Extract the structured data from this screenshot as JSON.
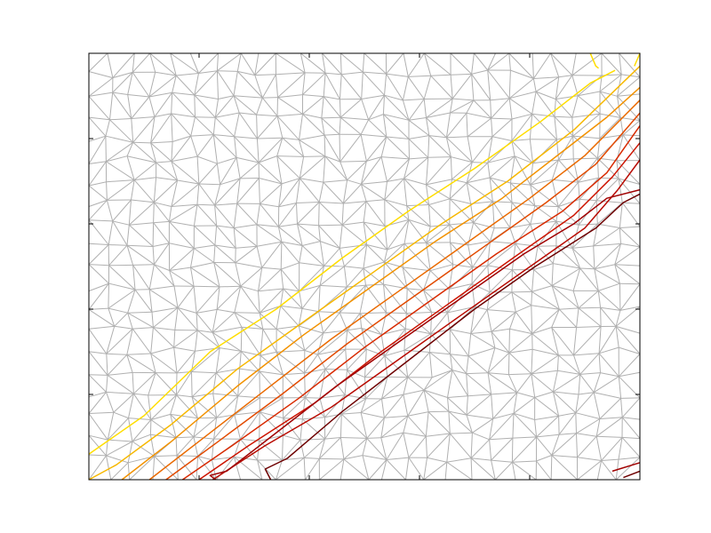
{
  "chart_data": {
    "type": "line",
    "title": "",
    "xlabel": "",
    "ylabel": "",
    "xlim": [
      0,
      1
    ],
    "ylim": [
      0,
      1
    ],
    "grid": false,
    "legend": "none",
    "mesh": {
      "color": "#b0b0b0",
      "node_grid": [
        26,
        20
      ],
      "jitter": 0.42,
      "seed": 7
    },
    "series": [
      {
        "color": "#ffdd00",
        "x": [
          0.0,
          0.1,
          0.22,
          0.34,
          0.46,
          0.58,
          0.7,
          0.82,
          0.91,
          0.955
        ],
        "y": [
          0.06,
          0.15,
          0.3,
          0.4,
          0.52,
          0.63,
          0.73,
          0.84,
          0.93,
          0.96
        ]
      },
      {
        "color": "#ffdd00",
        "x": [
          0.91,
          0.915,
          0.92,
          0.925
        ],
        "y": [
          1.0,
          0.985,
          0.97,
          0.965
        ]
      },
      {
        "color": "#ffdd00",
        "x": [
          0.99,
          1.0
        ],
        "y": [
          0.97,
          1.0
        ]
      },
      {
        "color": "#f7b800",
        "x": [
          0.0,
          0.05,
          0.15,
          0.27,
          0.4,
          0.52,
          0.64,
          0.76,
          0.88,
          1.0
        ],
        "y": [
          0.0,
          0.035,
          0.13,
          0.26,
          0.38,
          0.49,
          0.6,
          0.7,
          0.82,
          0.97
        ]
      },
      {
        "color": "#f29200",
        "x": [
          0.06,
          0.15,
          0.27,
          0.39,
          0.51,
          0.63,
          0.75,
          0.86,
          0.94,
          1.0
        ],
        "y": [
          0.0,
          0.09,
          0.22,
          0.34,
          0.45,
          0.56,
          0.66,
          0.77,
          0.85,
          0.92
        ]
      },
      {
        "color": "#ea6a00",
        "x": [
          0.11,
          0.2,
          0.32,
          0.44,
          0.56,
          0.68,
          0.8,
          0.9,
          1.0
        ],
        "y": [
          0.0,
          0.09,
          0.21,
          0.33,
          0.44,
          0.55,
          0.66,
          0.76,
          0.89
        ]
      },
      {
        "color": "#e24a00",
        "x": [
          0.14,
          0.23,
          0.35,
          0.47,
          0.59,
          0.71,
          0.83,
          0.92,
          1.0
        ],
        "y": [
          0.0,
          0.085,
          0.2,
          0.32,
          0.43,
          0.54,
          0.65,
          0.74,
          0.86
        ]
      },
      {
        "color": "#d82a00",
        "x": [
          0.17,
          0.26,
          0.38,
          0.5,
          0.62,
          0.74,
          0.86,
          0.94,
          1.0
        ],
        "y": [
          0.0,
          0.08,
          0.19,
          0.31,
          0.42,
          0.53,
          0.63,
          0.72,
          0.83
        ]
      },
      {
        "color": "#cc1400",
        "x": [
          0.2,
          0.29,
          0.41,
          0.53,
          0.65,
          0.77,
          0.88,
          0.95,
          1.0
        ],
        "y": [
          0.0,
          0.08,
          0.18,
          0.3,
          0.41,
          0.52,
          0.62,
          0.71,
          0.79
        ]
      },
      {
        "color": "#b80a00",
        "x": [
          0.225,
          0.32,
          0.44,
          0.56,
          0.68,
          0.79,
          0.9,
          0.96,
          1.0
        ],
        "y": [
          0.0,
          0.08,
          0.17,
          0.28,
          0.39,
          0.49,
          0.59,
          0.68,
          0.75
        ]
      },
      {
        "color": "#a00000",
        "x": [
          0.23,
          0.22,
          0.25,
          0.33,
          0.45,
          0.57,
          0.68,
          0.79,
          0.88,
          0.94,
          1.0
        ],
        "y": [
          0.0,
          0.01,
          0.02,
          0.1,
          0.22,
          0.33,
          0.43,
          0.53,
          0.6,
          0.66,
          0.68
        ]
      },
      {
        "color": "#6e0000",
        "x": [
          0.33,
          0.32,
          0.36,
          0.46,
          0.58,
          0.7,
          0.81,
          0.92,
          0.97,
          1.0
        ],
        "y": [
          0.0,
          0.025,
          0.05,
          0.16,
          0.28,
          0.4,
          0.5,
          0.59,
          0.65,
          0.67
        ]
      },
      {
        "color": "#a00000",
        "x": [
          0.95,
          1.0
        ],
        "y": [
          0.02,
          0.04
        ]
      },
      {
        "color": "#6e0000",
        "x": [
          0.97,
          1.0
        ],
        "y": [
          0.005,
          0.02
        ]
      }
    ]
  }
}
